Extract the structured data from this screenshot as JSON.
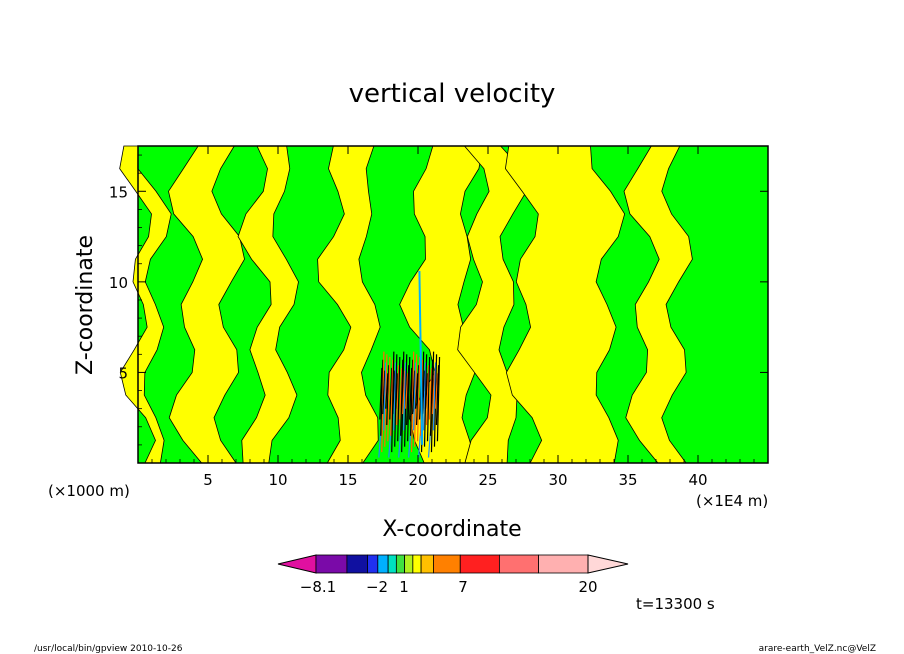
{
  "chart_data": {
    "type": "heatmap",
    "title": "vertical velocity",
    "xlabel": "X-coordinate",
    "ylabel": "Z-coordinate",
    "x_unit_note": "(×1000 m)",
    "x_scale_note": "(×1E4 m)",
    "xlim": [
      0,
      45
    ],
    "ylim": [
      0,
      17.5
    ],
    "x_ticks": [
      "5",
      "10",
      "15",
      "20",
      "25",
      "30",
      "35",
      "40"
    ],
    "y_ticks": [
      "5",
      "10",
      "15"
    ],
    "x_tick_values": [
      5,
      10,
      15,
      20,
      25,
      30,
      35,
      40
    ],
    "y_tick_values": [
      5,
      10,
      15
    ],
    "time_label": "t=13300 s",
    "colorbar": {
      "labels": [
        "-8.1",
        "-2",
        "1",
        "7",
        "20"
      ],
      "colors": [
        "#e010a0",
        "#7a0aa8",
        "#1010a0",
        "#2030f0",
        "#00b0ff",
        "#00e0c0",
        "#40e040",
        "#b0f020",
        "#ffff00",
        "#ffc000",
        "#ff8000",
        "#ff2020",
        "#ff7070",
        "#ffb0b0",
        "#ffd8d8"
      ]
    },
    "regions": {
      "yellow_bands_x": [
        [
          0,
          1.2
        ],
        [
          3.5,
          6.5
        ],
        [
          8.5,
          10.5
        ],
        [
          14,
          16.5
        ],
        [
          20,
          23.5
        ],
        [
          24,
          26.5
        ],
        [
          27.5,
          33.5
        ],
        [
          36,
          38.5
        ]
      ],
      "dominant_colors": {
        "positive": "#ffff00",
        "near_zero": "#00ff00",
        "strong": "#ff6a00"
      }
    }
  },
  "footer": {
    "left": "/usr/local/bin/gpview   2010-10-26",
    "right": "arare-earth_VelZ.nc@VelZ"
  }
}
